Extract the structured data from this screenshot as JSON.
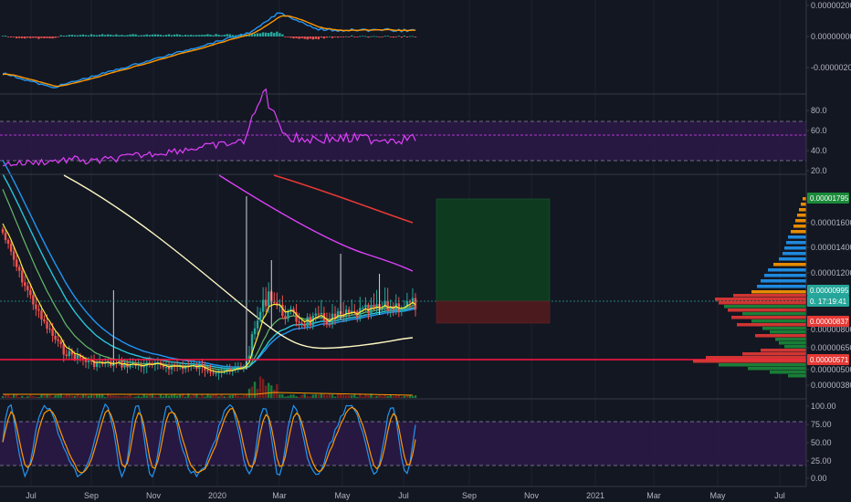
{
  "chart_data": {
    "type": "line",
    "symbol_scale": "price (BTC)",
    "x_axis": {
      "ticks": [
        "Jul",
        "Sep",
        "Nov",
        "2020",
        "Mar",
        "May",
        "Jul",
        "Sep",
        "Nov",
        "2021",
        "Mar",
        "May",
        "Jul"
      ]
    },
    "macd": {
      "y_ticks": [
        "0.00000200",
        "0.00000000",
        "-0.00000200"
      ],
      "series": [
        {
          "name": "MACD",
          "color": "#2196f3"
        },
        {
          "name": "Signal",
          "color": "#ff9800"
        }
      ],
      "histogram_colors": [
        "#26a69a",
        "#ef5350"
      ]
    },
    "rsi": {
      "y_ticks": [
        "80.0",
        "60.0",
        "40.0",
        "20.0"
      ],
      "upper_band": 70,
      "lower_band": 30,
      "mid": 56,
      "color": "#e040fb"
    },
    "price": {
      "y_ticks": [
        "0.00001600",
        "0.00001400",
        "0.00001200",
        "0.00000800",
        "0.00000650",
        "0.00000500",
        "0.00000380"
      ],
      "tags": [
        {
          "label": "0.00001795",
          "color": "#1b8a3a"
        },
        {
          "label": "0.00000995",
          "color": "#26a69a"
        },
        {
          "label": "0. 17:19:41",
          "color": "#26a69a"
        },
        {
          "label": "0.00000837",
          "color": "#e53935"
        },
        {
          "label": "0.00000571",
          "color": "#e53935"
        }
      ],
      "moving_averages": [
        {
          "color": "#ffeb3b"
        },
        {
          "color": "#66bb6a"
        },
        {
          "color": "#26c6da"
        },
        {
          "color": "#2196f3"
        },
        {
          "color": "#fff9c4"
        },
        {
          "color": "#e040fb"
        },
        {
          "color": "#e53935"
        }
      ],
      "horizontal_line": {
        "value": 5.71e-06,
        "color": "#ff1744"
      },
      "position": {
        "entry": 9.95e-06,
        "target": 1.795e-05,
        "stop": 8.37e-06
      }
    },
    "stoch": {
      "y_ticks": [
        "100.00",
        "75.00",
        "50.00",
        "25.00",
        "0.00"
      ],
      "upper_band": 80,
      "lower_band": 20,
      "series": [
        {
          "name": "%K",
          "color": "#2196f3"
        },
        {
          "name": "%D",
          "color": "#ff9800"
        }
      ]
    }
  }
}
